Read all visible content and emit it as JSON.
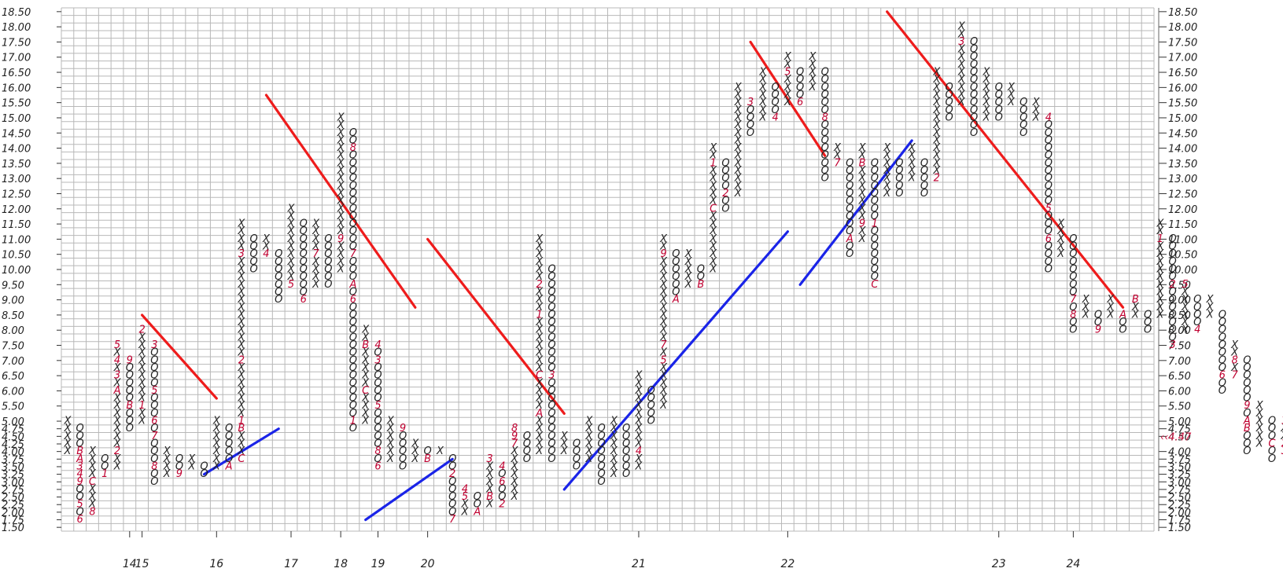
{
  "chart_data": {
    "type": "point-and-figure",
    "grid": true,
    "box_size": 0.25,
    "ylim": [
      1.5,
      18.5
    ],
    "y_ticks": [
      "1.50",
      "1.75",
      "2.00",
      "2.25",
      "2.50",
      "2.75",
      "3.00",
      "3.25",
      "3.50",
      "3.75",
      "4.00",
      "4.25",
      "4.50",
      "4.75",
      "5.00",
      "5.50",
      "6.00",
      "6.50",
      "7.00",
      "7.50",
      "8.00",
      "8.50",
      "9.00",
      "9.50",
      "10.00",
      "10.50",
      "11.00",
      "11.50",
      "12.00",
      "12.50",
      "13.00",
      "13.50",
      "14.00",
      "14.50",
      "15.00",
      "15.50",
      "16.00",
      "16.50",
      "17.00",
      "17.50",
      "18.00",
      "18.50"
    ],
    "left_highlight_label": "4.25",
    "right_last_price": "4.47",
    "right_last_arrow": "‹‹",
    "year_labels": [
      {
        "label": "14",
        "column": 5
      },
      {
        "label": "15",
        "column": 6
      },
      {
        "label": "16",
        "column": 12
      },
      {
        "label": "17",
        "column": 18
      },
      {
        "label": "18",
        "column": 22
      },
      {
        "label": "19",
        "column": 25
      },
      {
        "label": "20",
        "column": 29
      },
      {
        "label": "21",
        "column": 46
      },
      {
        "label": "22",
        "column": 58
      },
      {
        "label": "23",
        "column": 75
      },
      {
        "label": "24",
        "column": 81
      }
    ],
    "columns": [
      {
        "type": "X",
        "from": 4.0,
        "to": 5.0
      },
      {
        "type": "O",
        "from": 4.75,
        "to": 1.75,
        "labels": {
          "4.0": "B",
          "3.75": "A",
          "3.5": "3",
          "3.25": "4",
          "3.0": "9",
          "2.25": "5",
          "1.75": "6"
        }
      },
      {
        "type": "X",
        "from": 2.0,
        "to": 4.0,
        "labels": {
          "2.0": "8",
          "3.0": "C"
        }
      },
      {
        "type": "O",
        "from": 3.75,
        "to": 3.25,
        "labels": {
          "3.25": "1"
        }
      },
      {
        "type": "X",
        "from": 3.5,
        "to": 7.5,
        "labels": {
          "4.0": "2",
          "6.5": "3",
          "6.0": "A",
          "7.0": "4",
          "7.5": "5"
        }
      },
      {
        "type": "O",
        "from": 7.0,
        "to": 4.75,
        "labels": {
          "7.0": "9",
          "5.5": "B"
        }
      },
      {
        "type": "X",
        "from": 5.0,
        "to": 8.0,
        "labels": {
          "5.5": "1",
          "8.0": "2"
        }
      },
      {
        "type": "O",
        "from": 7.5,
        "to": 3.0,
        "labels": {
          "7.5": "3",
          "6.0": "5",
          "5.0": "6",
          "4.5": "7",
          "3.5": "8"
        }
      },
      {
        "type": "X",
        "from": 3.25,
        "to": 4.0
      },
      {
        "type": "O",
        "from": 3.75,
        "to": 3.25,
        "labels": {
          "3.25": "9"
        }
      },
      {
        "type": "X",
        "from": 3.5,
        "to": 3.75
      },
      {
        "type": "O",
        "from": 3.5,
        "to": 3.25
      },
      {
        "type": "X",
        "from": 3.5,
        "to": 5.0
      },
      {
        "type": "O",
        "from": 4.75,
        "to": 3.5,
        "labels": {
          "3.5": "A"
        }
      },
      {
        "type": "X",
        "from": 3.75,
        "to": 11.5,
        "labels": {
          "3.75": "C",
          "4.75": "B",
          "5.0": "1",
          "7.0": "2",
          "10.5": "3"
        }
      },
      {
        "type": "O",
        "from": 11.0,
        "to": 10.0
      },
      {
        "type": "X",
        "from": 10.5,
        "to": 11.0,
        "labels": {
          "10.5": "4"
        }
      },
      {
        "type": "O",
        "from": 10.5,
        "to": 9.0
      },
      {
        "type": "X",
        "from": 9.5,
        "to": 12.0,
        "labels": {
          "9.5": "5"
        }
      },
      {
        "type": "O",
        "from": 11.5,
        "to": 9.0,
        "labels": {
          "9.0": "6"
        }
      },
      {
        "type": "X",
        "from": 9.5,
        "to": 11.5,
        "labels": {
          "10.5": "7"
        }
      },
      {
        "type": "O",
        "from": 11.0,
        "to": 9.5
      },
      {
        "type": "X",
        "from": 10.0,
        "to": 15.0,
        "labels": {
          "11.0": "9"
        }
      },
      {
        "type": "O",
        "from": 14.5,
        "to": 4.75,
        "labels": {
          "14.0": "8",
          "10.5": "7",
          "9.5": "A",
          "9.0": "6",
          "5.0": "1"
        }
      },
      {
        "type": "X",
        "from": 5.0,
        "to": 8.0,
        "labels": {
          "7.5": "B",
          "6.0": "C"
        }
      },
      {
        "type": "O",
        "from": 7.5,
        "to": 3.5,
        "labels": {
          "7.5": "4",
          "7.0": "3",
          "5.5": "5",
          "4.0": "8",
          "3.5": "6"
        }
      },
      {
        "type": "X",
        "from": 3.75,
        "to": 5.0
      },
      {
        "type": "O",
        "from": 4.75,
        "to": 3.5,
        "labels": {
          "4.75": "9"
        }
      },
      {
        "type": "X",
        "from": 3.75,
        "to": 4.25
      },
      {
        "type": "O",
        "from": 4.0,
        "to": 3.75,
        "labels": {
          "3.75": "B"
        }
      },
      {
        "type": "X",
        "from": 4.0,
        "to": 4.0
      },
      {
        "type": "O",
        "from": 3.75,
        "to": 1.75,
        "labels": {
          "4.0": "C",
          "3.25": "2",
          "1.75": "7"
        }
      },
      {
        "type": "X",
        "from": 2.0,
        "to": 2.75,
        "labels": {
          "2.5": "5",
          "2.75": "4"
        }
      },
      {
        "type": "O",
        "from": 2.5,
        "to": 2.0,
        "labels": {
          "2.0": "A"
        }
      },
      {
        "type": "X",
        "from": 2.25,
        "to": 3.75,
        "labels": {
          "2.5": "B",
          "3.75": "3"
        }
      },
      {
        "type": "O",
        "from": 3.5,
        "to": 2.25,
        "labels": {
          "3.5": "4",
          "3.0": "6",
          "2.25": "2"
        }
      },
      {
        "type": "X",
        "from": 2.5,
        "to": 4.75,
        "labels": {
          "4.25": "7",
          "4.5": "9",
          "4.75": "8"
        }
      },
      {
        "type": "O",
        "from": 4.5,
        "to": 3.75
      },
      {
        "type": "X",
        "from": 4.0,
        "to": 11.0,
        "labels": {
          "5.25": "A",
          "6.5": "C",
          "8.5": "1",
          "9.5": "2"
        }
      },
      {
        "type": "O",
        "from": 10.0,
        "to": 3.75,
        "labels": {
          "6.5": "3"
        }
      },
      {
        "type": "X",
        "from": 4.0,
        "to": 4.5
      },
      {
        "type": "O",
        "from": 4.25,
        "to": 3.5
      },
      {
        "type": "X",
        "from": 3.75,
        "to": 5.0
      },
      {
        "type": "O",
        "from": 4.75,
        "to": 3.0
      },
      {
        "type": "X",
        "from": 3.25,
        "to": 5.0
      },
      {
        "type": "O",
        "from": 4.75,
        "to": 3.25
      },
      {
        "type": "X",
        "from": 3.5,
        "to": 6.5,
        "labels": {
          "4.0": "4"
        }
      },
      {
        "type": "O",
        "from": 6.0,
        "to": 5.0
      },
      {
        "type": "X",
        "from": 5.5,
        "to": 11.0,
        "labels": {
          "7.0": "5",
          "7.5": "7",
          "10.5": "9"
        }
      },
      {
        "type": "O",
        "from": 10.5,
        "to": 9.0,
        "labels": {
          "9.0": "A"
        }
      },
      {
        "type": "X",
        "from": 9.5,
        "to": 10.5
      },
      {
        "type": "O",
        "from": 10.0,
        "to": 9.5,
        "labels": {
          "9.5": "B"
        }
      },
      {
        "type": "X",
        "from": 10.0,
        "to": 14.0,
        "labels": {
          "12.0": "C",
          "13.5": "1"
        }
      },
      {
        "type": "O",
        "from": 13.5,
        "to": 12.0,
        "labels": {
          "12.5": "2"
        }
      },
      {
        "type": "X",
        "from": 12.5,
        "to": 16.0
      },
      {
        "type": "O",
        "from": 15.5,
        "to": 14.5,
        "labels": {
          "15.5": "3"
        }
      },
      {
        "type": "X",
        "from": 15.0,
        "to": 16.5
      },
      {
        "type": "O",
        "from": 16.0,
        "to": 15.0,
        "labels": {
          "15.0": "4"
        }
      },
      {
        "type": "X",
        "from": 15.5,
        "to": 17.0,
        "labels": {
          "16.5": "5"
        }
      },
      {
        "type": "O",
        "from": 16.5,
        "to": 15.5,
        "labels": {
          "15.5": "6"
        }
      },
      {
        "type": "X",
        "from": 16.0,
        "to": 17.0
      },
      {
        "type": "O",
        "from": 16.5,
        "to": 13.0,
        "labels": {
          "15.0": "8"
        }
      },
      {
        "type": "X",
        "from": 13.5,
        "to": 14.0,
        "labels": {
          "13.5": "7"
        }
      },
      {
        "type": "O",
        "from": 13.5,
        "to": 10.5,
        "labels": {
          "11.0": "A"
        }
      },
      {
        "type": "X",
        "from": 11.0,
        "to": 14.0,
        "labels": {
          "11.5": "9",
          "13.5": "B"
        }
      },
      {
        "type": "O",
        "from": 13.5,
        "to": 9.5,
        "labels": {
          "11.5": "1",
          "9.5": "C"
        }
      },
      {
        "type": "X",
        "from": 12.5,
        "to": 14.0
      },
      {
        "type": "O",
        "from": 13.5,
        "to": 12.5
      },
      {
        "type": "X",
        "from": 13.0,
        "to": 14.0
      },
      {
        "type": "O",
        "from": 13.5,
        "to": 12.5
      },
      {
        "type": "X",
        "from": 13.0,
        "to": 16.5,
        "labels": {
          "13.0": "2"
        }
      },
      {
        "type": "O",
        "from": 16.0,
        "to": 15.0
      },
      {
        "type": "X",
        "from": 15.5,
        "to": 18.0,
        "labels": {
          "17.5": "3"
        }
      },
      {
        "type": "O",
        "from": 17.5,
        "to": 14.5
      },
      {
        "type": "X",
        "from": 15.0,
        "to": 16.5
      },
      {
        "type": "O",
        "from": 16.0,
        "to": 15.0
      },
      {
        "type": "X",
        "from": 15.5,
        "to": 16.0
      },
      {
        "type": "O",
        "from": 15.5,
        "to": 14.5
      },
      {
        "type": "X",
        "from": 15.0,
        "to": 15.5
      },
      {
        "type": "O",
        "from": 15.0,
        "to": 10.0,
        "labels": {
          "15.0": "4",
          "12.0": "5",
          "11.0": "6"
        }
      },
      {
        "type": "X",
        "from": 10.5,
        "to": 11.5
      },
      {
        "type": "O",
        "from": 11.0,
        "to": 8.0,
        "labels": {
          "9.0": "7",
          "8.5": "8"
        }
      },
      {
        "type": "X",
        "from": 8.5,
        "to": 9.0
      },
      {
        "type": "O",
        "from": 8.5,
        "to": 8.0,
        "labels": {
          "8.0": "9"
        }
      },
      {
        "type": "X",
        "from": 8.5,
        "to": 9.0
      },
      {
        "type": "O",
        "from": 8.5,
        "to": 8.0,
        "labels": {
          "8.5": "A"
        }
      },
      {
        "type": "X",
        "from": 8.5,
        "to": 9.0,
        "labels": {
          "9.0": "B"
        }
      },
      {
        "type": "O",
        "from": 8.5,
        "to": 8.0
      },
      {
        "type": "X",
        "from": 8.5,
        "to": 11.5,
        "labels": {
          "11.0": "1"
        }
      },
      {
        "type": "O",
        "from": 11.0,
        "to": 7.5,
        "labels": {
          "9.5": "2",
          "7.5": "3"
        }
      },
      {
        "type": "X",
        "from": 8.0,
        "to": 9.5,
        "labels": {
          "9.5": "5"
        }
      },
      {
        "type": "O",
        "from": 9.0,
        "to": 8.0,
        "labels": {
          "8.0": "4"
        }
      },
      {
        "type": "X",
        "from": 8.5,
        "to": 9.0
      },
      {
        "type": "O",
        "from": 8.5,
        "to": 6.0,
        "labels": {
          "6.5": "6"
        }
      },
      {
        "type": "X",
        "from": 6.5,
        "to": 7.5,
        "labels": {
          "6.5": "7",
          "7.0": "8"
        }
      },
      {
        "type": "O",
        "from": 7.0,
        "to": 4.0,
        "labels": {
          "5.5": "9",
          "5.0": "A",
          "4.75": "B"
        }
      },
      {
        "type": "X",
        "from": 4.25,
        "to": 5.5
      },
      {
        "type": "O",
        "from": 5.0,
        "to": 3.75,
        "labels": {
          "4.25": "C"
        }
      },
      {
        "type": "X",
        "from": 4.0,
        "to": 5.0,
        "labels": {
          "5.0": "1",
          "4.25": "2",
          "4.0": "3"
        }
      },
      {
        "type": "O",
        "from": 4.75,
        "to": 4.5
      }
    ],
    "trendlines_red": [
      {
        "col1": 6,
        "y1": 8.5,
        "col2": 12,
        "y2": 5.75
      },
      {
        "col1": 16,
        "y1": 15.75,
        "col2": 28,
        "y2": 8.75
      },
      {
        "col1": 29,
        "y1": 11.0,
        "col2": 40,
        "y2": 5.25
      },
      {
        "col1": 55,
        "y1": 17.5,
        "col2": 61,
        "y2": 13.75
      },
      {
        "col1": 66,
        "y1": 18.5,
        "col2": 85,
        "y2": 8.75
      }
    ],
    "trendlines_blue": [
      {
        "col1": 11,
        "y1": 3.25,
        "col2": 17,
        "y2": 4.75
      },
      {
        "col1": 24,
        "y1": 1.75,
        "col2": 31,
        "y2": 3.75
      },
      {
        "col1": 40,
        "y1": 2.75,
        "col2": 58,
        "y2": 11.25
      },
      {
        "col1": 59,
        "y1": 9.5,
        "col2": 68,
        "y2": 14.25
      }
    ],
    "colors": {
      "x_o": "#222222",
      "month": "#c00030",
      "red_line": "#ee1c1c",
      "blue_line": "#1a24e8",
      "grid": "#b8b8b8",
      "highlight": "#d0204a"
    }
  }
}
